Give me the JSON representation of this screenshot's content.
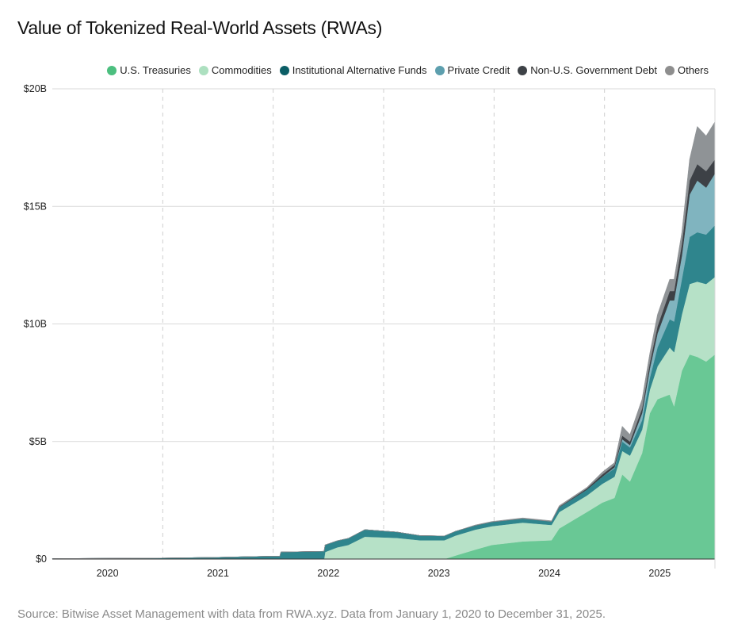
{
  "chart_data": {
    "type": "area",
    "stacked": true,
    "title": "Value of Tokenized Real-World Assets (RWAs)",
    "source": "Source: Bitwise Asset Management with data from RWA.xyz. Data from January 1, 2020 to December 31, 2025.",
    "xlabel": "",
    "ylabel": "",
    "ylim": [
      0,
      20
    ],
    "xlim": [
      2020.0,
      2026.0
    ],
    "y_ticks": [
      {
        "value": 0,
        "label": "$0"
      },
      {
        "value": 5,
        "label": "$5B"
      },
      {
        "value": 10,
        "label": "$10B"
      },
      {
        "value": 15,
        "label": "$15B"
      },
      {
        "value": 20,
        "label": "$20B"
      }
    ],
    "x_ticks": [
      {
        "value": 2020.5,
        "label": "2020"
      },
      {
        "value": 2021.5,
        "label": "2021"
      },
      {
        "value": 2022.5,
        "label": "2022"
      },
      {
        "value": 2023.5,
        "label": "2023"
      },
      {
        "value": 2024.5,
        "label": "2024"
      },
      {
        "value": 2025.5,
        "label": "2025"
      }
    ],
    "year_boundaries": [
      2021,
      2022,
      2023,
      2024,
      2025
    ],
    "legend_position": "top-right",
    "x": [
      2020.0,
      2020.96,
      2021.46,
      2021.97,
      2022.06,
      2022.07,
      2022.46,
      2022.47,
      2022.58,
      2022.68,
      2022.83,
      2023.12,
      2023.33,
      2023.55,
      2023.65,
      2023.83,
      2023.98,
      2024.26,
      2024.52,
      2024.59,
      2024.84,
      2024.98,
      2025.09,
      2025.16,
      2025.23,
      2025.34,
      2025.41,
      2025.48,
      2025.59,
      2025.63,
      2025.7,
      2025.77,
      2025.84,
      2025.92,
      2026.0
    ],
    "series": [
      {
        "name": "U.S. Treasuries",
        "legend_color": "#4cbf7f",
        "fill": "#69c895",
        "values": [
          0,
          0,
          0,
          0,
          0,
          0,
          0,
          0,
          0,
          0,
          0,
          0,
          0,
          0,
          0.15,
          0.4,
          0.6,
          0.75,
          0.8,
          1.3,
          2.0,
          2.4,
          2.6,
          3.6,
          3.3,
          4.5,
          6.2,
          6.8,
          7.0,
          6.5,
          8.0,
          8.7,
          8.6,
          8.4,
          8.7
        ]
      },
      {
        "name": "Commodities",
        "legend_color": "#ade0c0",
        "fill": "#b6e1c7",
        "values": [
          0,
          0,
          0,
          0,
          0,
          0,
          0,
          0.3,
          0.5,
          0.6,
          0.95,
          0.9,
          0.8,
          0.8,
          0.85,
          0.85,
          0.8,
          0.8,
          0.65,
          0.7,
          0.7,
          0.8,
          0.9,
          1.0,
          1.1,
          1.0,
          1.0,
          1.4,
          2.0,
          2.3,
          2.4,
          3.0,
          3.2,
          3.3,
          3.3
        ]
      },
      {
        "name": "Institutional Alternative Funds",
        "legend_color": "#0b5e66",
        "fill": "#2f858d",
        "values": [
          0.02,
          0.04,
          0.07,
          0.12,
          0.12,
          0.3,
          0.33,
          0.3,
          0.28,
          0.28,
          0.3,
          0.25,
          0.2,
          0.18,
          0.18,
          0.18,
          0.18,
          0.17,
          0.15,
          0.2,
          0.25,
          0.3,
          0.35,
          0.4,
          0.35,
          0.4,
          0.5,
          0.8,
          1.2,
          1.3,
          1.5,
          2.0,
          2.1,
          2.1,
          2.2
        ]
      },
      {
        "name": "Private Credit",
        "legend_color": "#5d9fae",
        "fill": "#80b4bf",
        "values": [
          0,
          0,
          0,
          0,
          0,
          0,
          0,
          0,
          0,
          0,
          0,
          0,
          0,
          0,
          0,
          0,
          0,
          0,
          0,
          0,
          0,
          0,
          0.05,
          0.1,
          0.1,
          0.3,
          0.4,
          0.6,
          0.8,
          0.9,
          1.0,
          1.8,
          2.2,
          2.0,
          2.2
        ]
      },
      {
        "name": "Non-U.S. Government Debt",
        "legend_color": "#3e4247",
        "fill": "#3d4146",
        "values": [
          0,
          0,
          0,
          0,
          0,
          0,
          0,
          0,
          0,
          0,
          0,
          0,
          0,
          0,
          0,
          0,
          0,
          0,
          0,
          0.02,
          0.05,
          0.1,
          0.1,
          0.15,
          0.15,
          0.2,
          0.25,
          0.3,
          0.4,
          0.4,
          0.5,
          0.6,
          0.7,
          0.7,
          0.6
        ]
      },
      {
        "name": "Others",
        "legend_color": "#8e8e8e",
        "fill": "#8f9396",
        "values": [
          0,
          0,
          0,
          0,
          0,
          0,
          0,
          0,
          0,
          0,
          0,
          0,
          0,
          0,
          0,
          0.02,
          0.02,
          0.03,
          0.03,
          0.05,
          0.05,
          0.1,
          0.1,
          0.4,
          0.3,
          0.4,
          0.4,
          0.5,
          0.5,
          0.5,
          0.5,
          0.9,
          1.6,
          1.5,
          1.6
        ]
      }
    ]
  }
}
